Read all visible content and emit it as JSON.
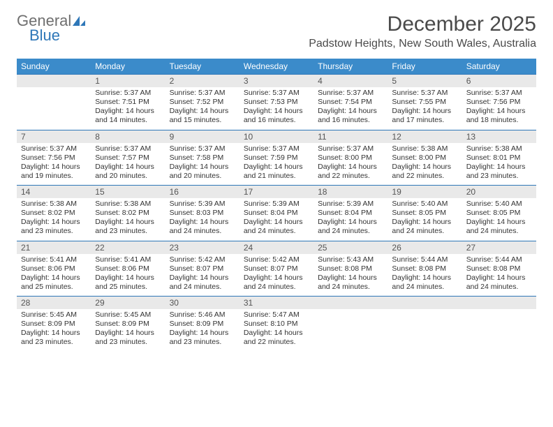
{
  "logo": {
    "line1": "General",
    "line2": "Blue"
  },
  "title": "December 2025",
  "location": "Padstow Heights, New South Wales, Australia",
  "colors": {
    "header_bg": "#3b8bca",
    "header_text": "#ffffff",
    "daynum_bg": "#e9e9e9",
    "border": "#2e77b8",
    "logo_gray": "#6f6f6f",
    "logo_blue": "#2e77b8"
  },
  "day_headers": [
    "Sunday",
    "Monday",
    "Tuesday",
    "Wednesday",
    "Thursday",
    "Friday",
    "Saturday"
  ],
  "weeks": [
    [
      {
        "n": "",
        "sr": "",
        "ss": "",
        "dl": ""
      },
      {
        "n": "1",
        "sr": "Sunrise: 5:37 AM",
        "ss": "Sunset: 7:51 PM",
        "dl": "Daylight: 14 hours and 14 minutes."
      },
      {
        "n": "2",
        "sr": "Sunrise: 5:37 AM",
        "ss": "Sunset: 7:52 PM",
        "dl": "Daylight: 14 hours and 15 minutes."
      },
      {
        "n": "3",
        "sr": "Sunrise: 5:37 AM",
        "ss": "Sunset: 7:53 PM",
        "dl": "Daylight: 14 hours and 16 minutes."
      },
      {
        "n": "4",
        "sr": "Sunrise: 5:37 AM",
        "ss": "Sunset: 7:54 PM",
        "dl": "Daylight: 14 hours and 16 minutes."
      },
      {
        "n": "5",
        "sr": "Sunrise: 5:37 AM",
        "ss": "Sunset: 7:55 PM",
        "dl": "Daylight: 14 hours and 17 minutes."
      },
      {
        "n": "6",
        "sr": "Sunrise: 5:37 AM",
        "ss": "Sunset: 7:56 PM",
        "dl": "Daylight: 14 hours and 18 minutes."
      }
    ],
    [
      {
        "n": "7",
        "sr": "Sunrise: 5:37 AM",
        "ss": "Sunset: 7:56 PM",
        "dl": "Daylight: 14 hours and 19 minutes."
      },
      {
        "n": "8",
        "sr": "Sunrise: 5:37 AM",
        "ss": "Sunset: 7:57 PM",
        "dl": "Daylight: 14 hours and 20 minutes."
      },
      {
        "n": "9",
        "sr": "Sunrise: 5:37 AM",
        "ss": "Sunset: 7:58 PM",
        "dl": "Daylight: 14 hours and 20 minutes."
      },
      {
        "n": "10",
        "sr": "Sunrise: 5:37 AM",
        "ss": "Sunset: 7:59 PM",
        "dl": "Daylight: 14 hours and 21 minutes."
      },
      {
        "n": "11",
        "sr": "Sunrise: 5:37 AM",
        "ss": "Sunset: 8:00 PM",
        "dl": "Daylight: 14 hours and 22 minutes."
      },
      {
        "n": "12",
        "sr": "Sunrise: 5:38 AM",
        "ss": "Sunset: 8:00 PM",
        "dl": "Daylight: 14 hours and 22 minutes."
      },
      {
        "n": "13",
        "sr": "Sunrise: 5:38 AM",
        "ss": "Sunset: 8:01 PM",
        "dl": "Daylight: 14 hours and 23 minutes."
      }
    ],
    [
      {
        "n": "14",
        "sr": "Sunrise: 5:38 AM",
        "ss": "Sunset: 8:02 PM",
        "dl": "Daylight: 14 hours and 23 minutes."
      },
      {
        "n": "15",
        "sr": "Sunrise: 5:38 AM",
        "ss": "Sunset: 8:02 PM",
        "dl": "Daylight: 14 hours and 23 minutes."
      },
      {
        "n": "16",
        "sr": "Sunrise: 5:39 AM",
        "ss": "Sunset: 8:03 PM",
        "dl": "Daylight: 14 hours and 24 minutes."
      },
      {
        "n": "17",
        "sr": "Sunrise: 5:39 AM",
        "ss": "Sunset: 8:04 PM",
        "dl": "Daylight: 14 hours and 24 minutes."
      },
      {
        "n": "18",
        "sr": "Sunrise: 5:39 AM",
        "ss": "Sunset: 8:04 PM",
        "dl": "Daylight: 14 hours and 24 minutes."
      },
      {
        "n": "19",
        "sr": "Sunrise: 5:40 AM",
        "ss": "Sunset: 8:05 PM",
        "dl": "Daylight: 14 hours and 24 minutes."
      },
      {
        "n": "20",
        "sr": "Sunrise: 5:40 AM",
        "ss": "Sunset: 8:05 PM",
        "dl": "Daylight: 14 hours and 24 minutes."
      }
    ],
    [
      {
        "n": "21",
        "sr": "Sunrise: 5:41 AM",
        "ss": "Sunset: 8:06 PM",
        "dl": "Daylight: 14 hours and 25 minutes."
      },
      {
        "n": "22",
        "sr": "Sunrise: 5:41 AM",
        "ss": "Sunset: 8:06 PM",
        "dl": "Daylight: 14 hours and 25 minutes."
      },
      {
        "n": "23",
        "sr": "Sunrise: 5:42 AM",
        "ss": "Sunset: 8:07 PM",
        "dl": "Daylight: 14 hours and 24 minutes."
      },
      {
        "n": "24",
        "sr": "Sunrise: 5:42 AM",
        "ss": "Sunset: 8:07 PM",
        "dl": "Daylight: 14 hours and 24 minutes."
      },
      {
        "n": "25",
        "sr": "Sunrise: 5:43 AM",
        "ss": "Sunset: 8:08 PM",
        "dl": "Daylight: 14 hours and 24 minutes."
      },
      {
        "n": "26",
        "sr": "Sunrise: 5:44 AM",
        "ss": "Sunset: 8:08 PM",
        "dl": "Daylight: 14 hours and 24 minutes."
      },
      {
        "n": "27",
        "sr": "Sunrise: 5:44 AM",
        "ss": "Sunset: 8:08 PM",
        "dl": "Daylight: 14 hours and 24 minutes."
      }
    ],
    [
      {
        "n": "28",
        "sr": "Sunrise: 5:45 AM",
        "ss": "Sunset: 8:09 PM",
        "dl": "Daylight: 14 hours and 23 minutes."
      },
      {
        "n": "29",
        "sr": "Sunrise: 5:45 AM",
        "ss": "Sunset: 8:09 PM",
        "dl": "Daylight: 14 hours and 23 minutes."
      },
      {
        "n": "30",
        "sr": "Sunrise: 5:46 AM",
        "ss": "Sunset: 8:09 PM",
        "dl": "Daylight: 14 hours and 23 minutes."
      },
      {
        "n": "31",
        "sr": "Sunrise: 5:47 AM",
        "ss": "Sunset: 8:10 PM",
        "dl": "Daylight: 14 hours and 22 minutes."
      },
      {
        "n": "",
        "sr": "",
        "ss": "",
        "dl": ""
      },
      {
        "n": "",
        "sr": "",
        "ss": "",
        "dl": ""
      },
      {
        "n": "",
        "sr": "",
        "ss": "",
        "dl": ""
      }
    ]
  ]
}
